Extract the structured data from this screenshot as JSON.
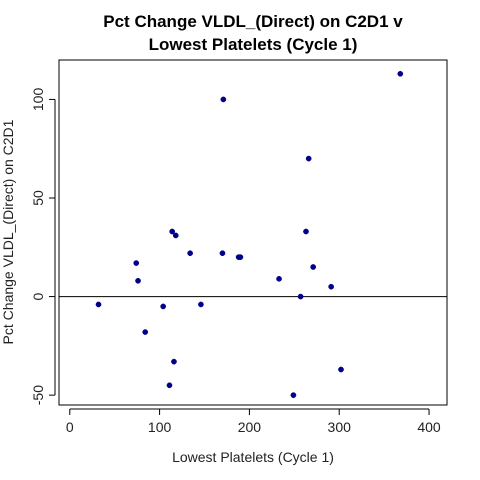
{
  "chart_data": {
    "type": "scatter",
    "title_line1": "Pct Change VLDL_(Direct) on C2D1 v",
    "title_line2": "Lowest Platelets (Cycle 1)",
    "xlabel": "Lowest Platelets (Cycle 1)",
    "ylabel": "Pct Change VLDL_(Direct) on C2D1",
    "xlim": [
      -12,
      420
    ],
    "ylim": [
      -55,
      120
    ],
    "x_ticks": [
      0,
      100,
      200,
      300,
      400
    ],
    "y_ticks": [
      -50,
      0,
      50,
      100
    ],
    "reference_line_y": 0,
    "point_color": "#00008b",
    "points": [
      {
        "x": 32,
        "y": -4
      },
      {
        "x": 74,
        "y": 17
      },
      {
        "x": 76,
        "y": 8
      },
      {
        "x": 84,
        "y": -18
      },
      {
        "x": 104,
        "y": -5
      },
      {
        "x": 111,
        "y": -45
      },
      {
        "x": 114,
        "y": 33
      },
      {
        "x": 116,
        "y": -33
      },
      {
        "x": 118,
        "y": 31
      },
      {
        "x": 134,
        "y": 22
      },
      {
        "x": 146,
        "y": -4
      },
      {
        "x": 170,
        "y": 22
      },
      {
        "x": 171,
        "y": 100
      },
      {
        "x": 188,
        "y": 20
      },
      {
        "x": 190,
        "y": 20
      },
      {
        "x": 233,
        "y": 9
      },
      {
        "x": 249,
        "y": -50
      },
      {
        "x": 257,
        "y": 0
      },
      {
        "x": 263,
        "y": 33
      },
      {
        "x": 266,
        "y": 70
      },
      {
        "x": 271,
        "y": 15
      },
      {
        "x": 291,
        "y": 5
      },
      {
        "x": 302,
        "y": -37
      },
      {
        "x": 368,
        "y": 113
      }
    ]
  }
}
